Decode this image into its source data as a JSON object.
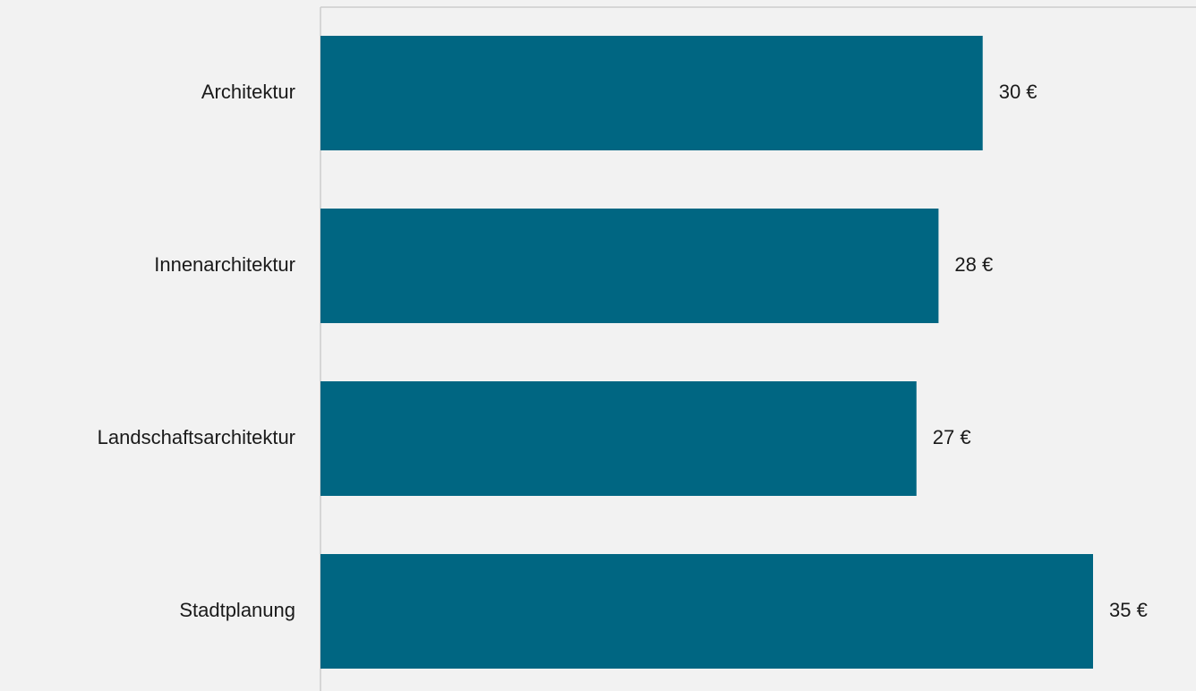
{
  "chart_data": {
    "type": "bar",
    "orientation": "horizontal",
    "categories": [
      "Architektur",
      "Innenarchitektur",
      "Landschaftsarchitektur",
      "Stadtplanung"
    ],
    "values": [
      30,
      28,
      27,
      35
    ],
    "value_labels": [
      "30 €",
      "28 €",
      "27 €",
      "35 €"
    ],
    "color": "#006682"
  }
}
